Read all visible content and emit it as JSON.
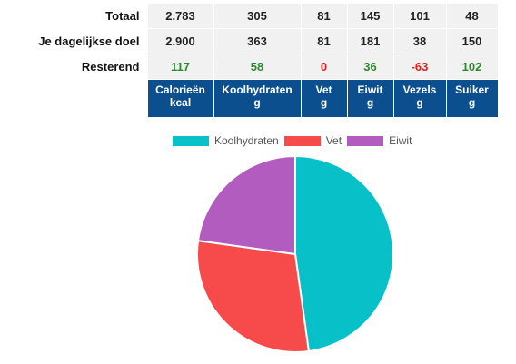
{
  "table": {
    "rows": [
      {
        "label": "Totaal",
        "values": [
          "2.783",
          "305",
          "81",
          "145",
          "101",
          "48"
        ]
      },
      {
        "label": "Je dagelijkse doel",
        "values": [
          "2.900",
          "363",
          "81",
          "181",
          "38",
          "150"
        ]
      },
      {
        "label": "Resterend",
        "values": [
          "117",
          "58",
          "0",
          "36",
          "-63",
          "102"
        ]
      }
    ],
    "headers": [
      {
        "name": "Calorieën",
        "unit": "kcal"
      },
      {
        "name": "Koolhydraten",
        "unit": "g"
      },
      {
        "name": "Vet",
        "unit": "g"
      },
      {
        "name": "Eiwit",
        "unit": "g"
      },
      {
        "name": "Vezels",
        "unit": "g"
      },
      {
        "name": "Suiker",
        "unit": "g"
      }
    ]
  },
  "chart_data": {
    "type": "pie",
    "categories": [
      "Koolhydraten",
      "Vet",
      "Eiwit"
    ],
    "values": [
      47.8,
      29.4,
      22.8
    ],
    "colors": [
      "#08c0c8",
      "#f74b4b",
      "#b35cc0"
    ],
    "legend": "top"
  }
}
